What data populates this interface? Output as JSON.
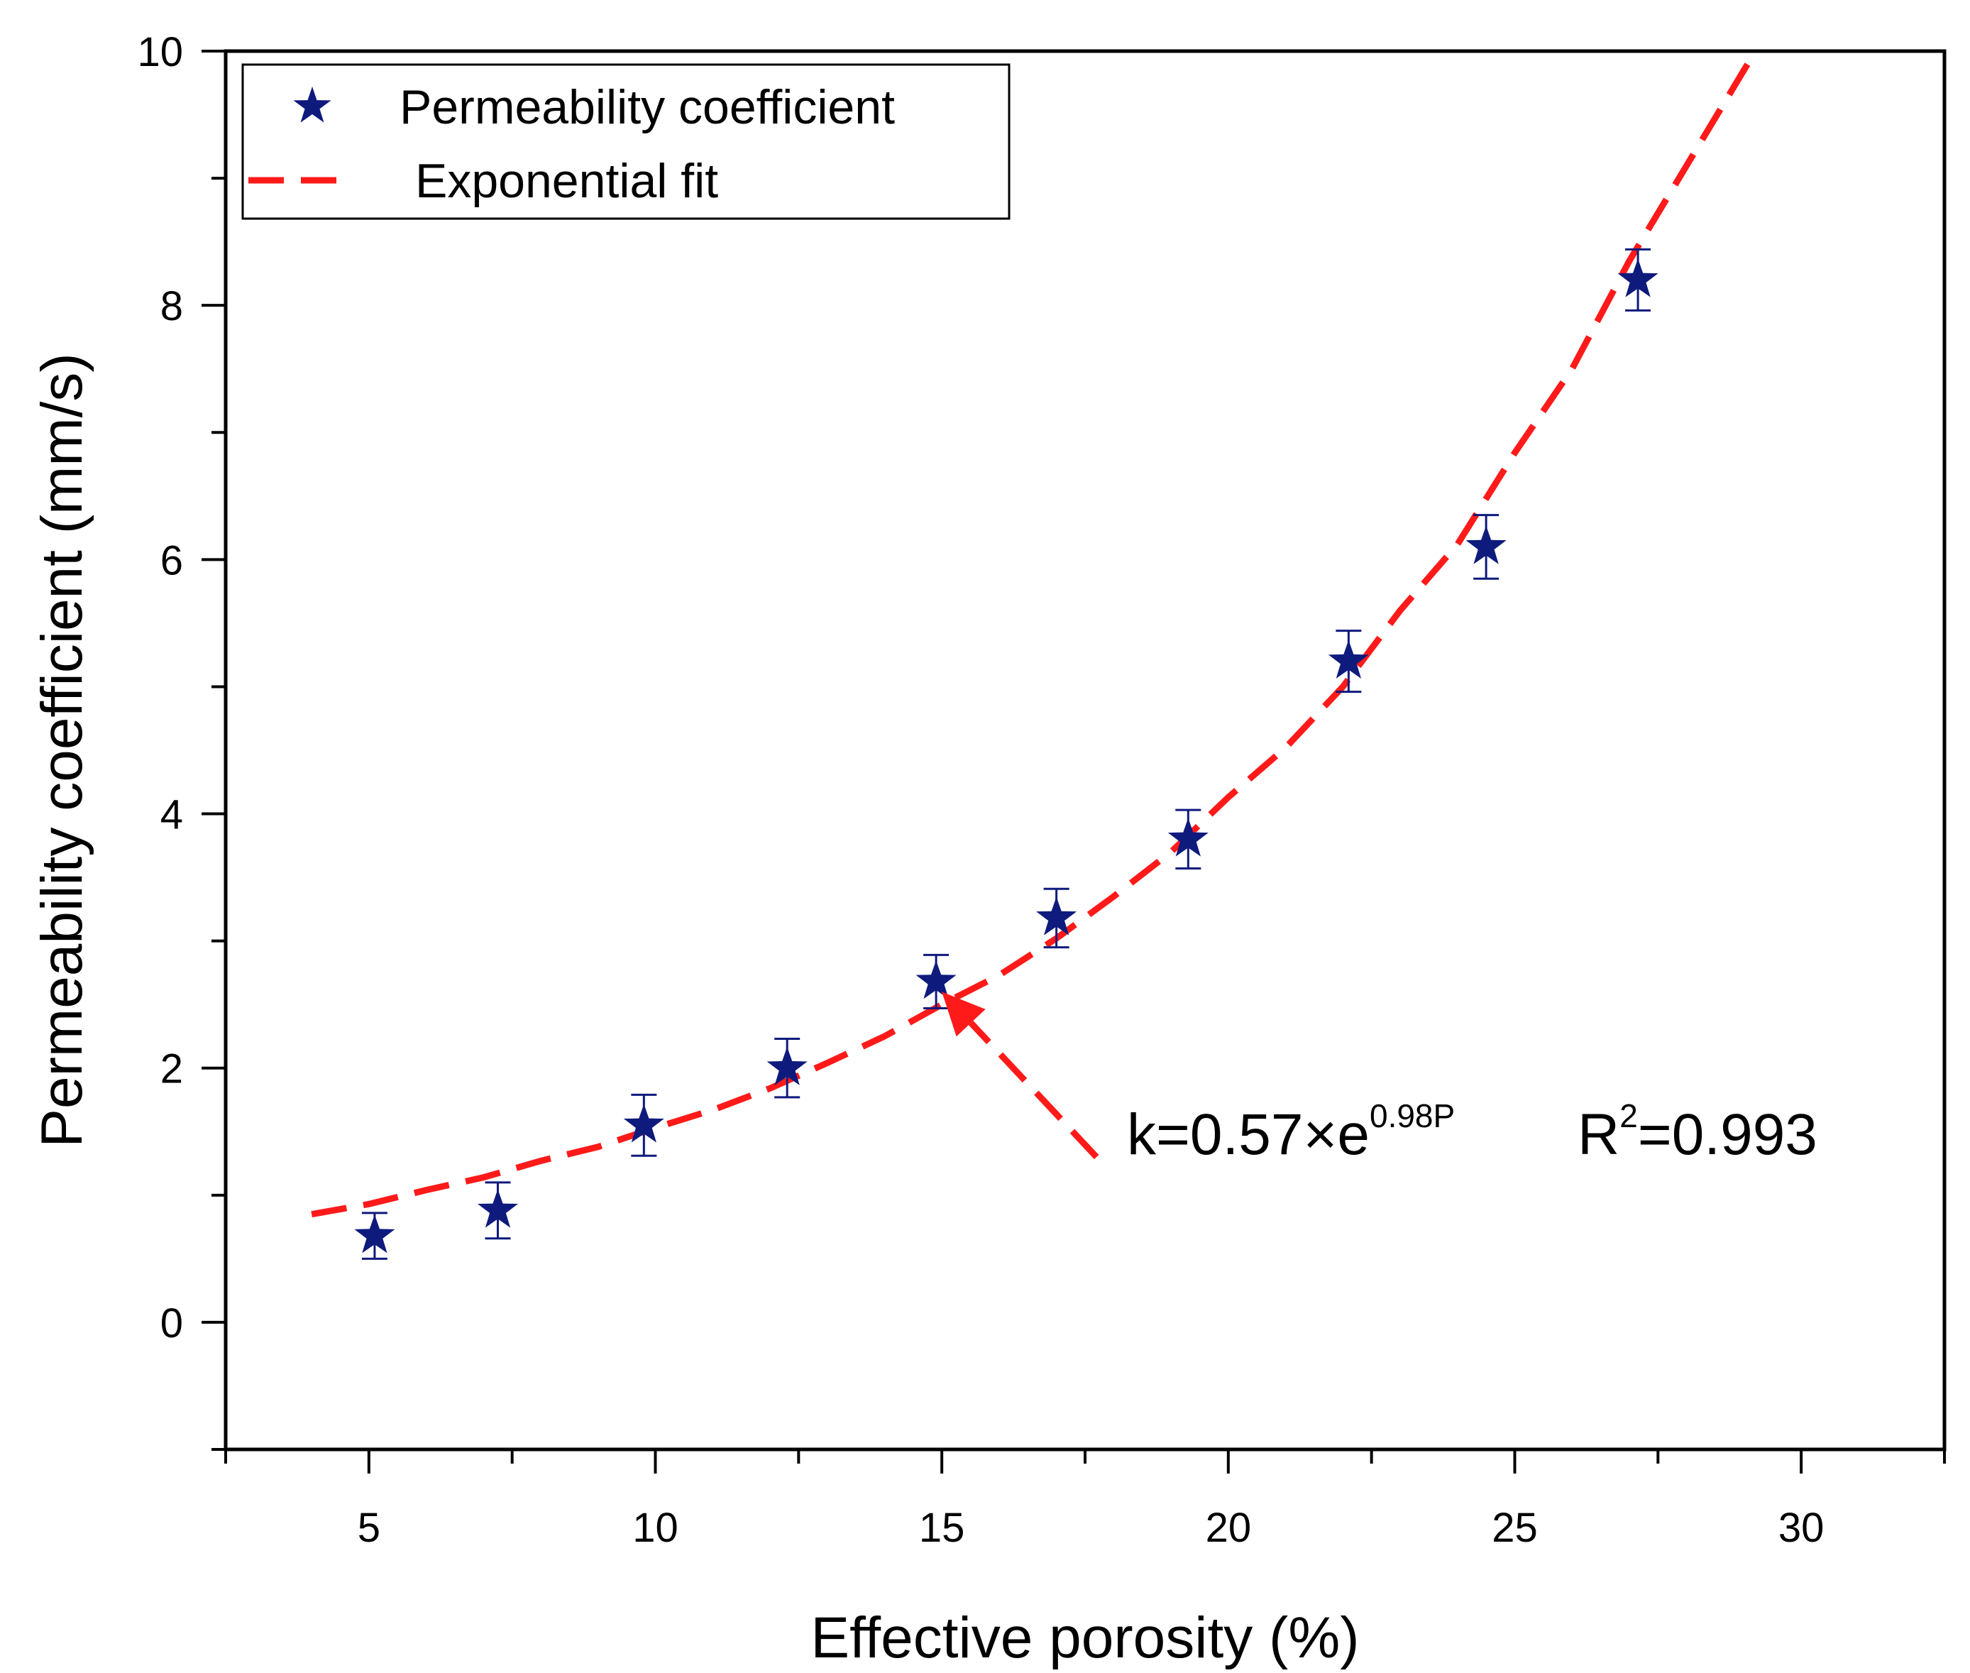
{
  "chart_data": {
    "type": "scatter",
    "title": "",
    "xlabel": "Effective porosity (%)",
    "ylabel": "Permeability coefficient (mm/s)",
    "xlim": [
      2.5,
      32.5
    ],
    "ylim": [
      -1,
      10
    ],
    "xticks": [
      5,
      10,
      15,
      20,
      25,
      30
    ],
    "yticks": [
      0,
      2,
      4,
      6,
      8,
      10
    ],
    "x_minor_step": 2.5,
    "y_minor_step": 1,
    "grid": false,
    "legend_position": "top-left",
    "series": [
      {
        "name": "Permeability coefficient",
        "kind": "points",
        "marker": "star",
        "color": "#0f1a7d",
        "x": [
          5.1,
          7.25,
          9.8,
          12.3,
          14.9,
          17.0,
          19.3,
          22.1,
          24.5,
          27.15
        ],
        "y": [
          0.68,
          0.88,
          1.55,
          2.0,
          2.68,
          3.18,
          3.8,
          5.2,
          6.1,
          8.2
        ],
        "error": [
          0.18,
          0.22,
          0.24,
          0.23,
          0.21,
          0.23,
          0.23,
          0.24,
          0.25,
          0.24
        ]
      },
      {
        "name": "Exponential fit",
        "kind": "line",
        "style": "dashed",
        "color": "#ff1a1a",
        "x": [
          4,
          5,
          6,
          7,
          8,
          9,
          10,
          11,
          12,
          13,
          14,
          15,
          16,
          17,
          18,
          19,
          20,
          21,
          22,
          23,
          24,
          25,
          26,
          27,
          28,
          29.2
        ],
        "y": [
          0.85,
          0.93,
          1.04,
          1.14,
          1.27,
          1.38,
          1.53,
          1.67,
          1.84,
          2.04,
          2.25,
          2.5,
          2.73,
          3.02,
          3.35,
          3.7,
          4.13,
          4.52,
          5.0,
          5.6,
          6.12,
          6.84,
          7.5,
          8.35,
          9.1,
          10.0
        ]
      }
    ],
    "annotation": {
      "k_prefix": "k=0.57×e",
      "k_exponent": "0.98P",
      "r_prefix": "R",
      "r_exponent": "2",
      "r_suffix": "=0.993",
      "arrow_target": {
        "x": 15.0,
        "y": 2.6
      },
      "arrow_tail": {
        "x": 17.7,
        "y": 1.3
      }
    }
  }
}
